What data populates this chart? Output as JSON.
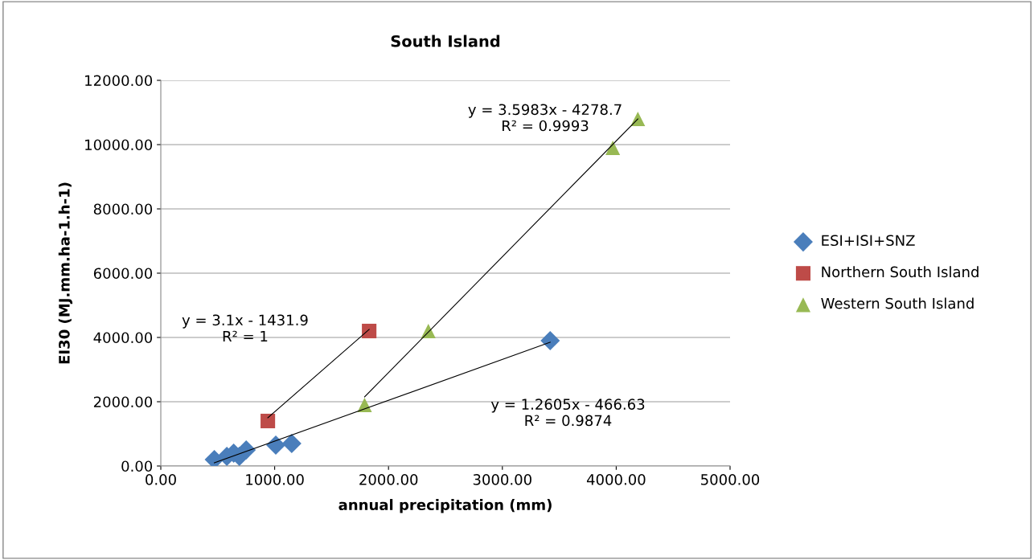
{
  "chart_data": {
    "type": "scatter",
    "title": "South Island",
    "xlabel": "annual precipitation (mm)",
    "ylabel": "EI30 (MJ.mm.ha-1.h-1)",
    "xlim": [
      0,
      5000
    ],
    "xticks": [
      {
        "value": 0,
        "label": "0.00"
      },
      {
        "value": 1000,
        "label": "1000.00"
      },
      {
        "value": 2000,
        "label": "2000.00"
      },
      {
        "value": 3000,
        "label": "3000.00"
      },
      {
        "value": 4000,
        "label": "4000.00"
      },
      {
        "value": 5000,
        "label": "5000.00"
      }
    ],
    "ylim": [
      0,
      12000
    ],
    "yticks": [
      {
        "value": 0,
        "label": "0.00"
      },
      {
        "value": 2000,
        "label": "2000.00"
      },
      {
        "value": 4000,
        "label": "4000.00"
      },
      {
        "value": 6000,
        "label": "6000.00"
      },
      {
        "value": 8000,
        "label": "8000.00"
      },
      {
        "value": 10000,
        "label": "10000.00"
      },
      {
        "value": 12000,
        "label": "12000.00"
      }
    ],
    "grid": "y",
    "legend": "right",
    "series": [
      {
        "name": "ESI+ISI+SNZ",
        "color": "#4a7ebb",
        "marker": "diamond",
        "x": [
          470,
          580,
          640,
          690,
          750,
          1010,
          1150,
          3420
        ],
        "values": [
          200,
          300,
          400,
          300,
          500,
          650,
          700,
          3900
        ]
      },
      {
        "name": "Northern South Island",
        "color": "#be4b48",
        "marker": "square",
        "x": [
          940,
          1830
        ],
        "values": [
          1400,
          4200
        ]
      },
      {
        "name": "Western South Island",
        "color": "#98b954",
        "marker": "triangle",
        "x": [
          1790,
          2350,
          3970,
          4190
        ],
        "values": [
          1900,
          4200,
          9900,
          10800
        ]
      },
      {
        "type": "line",
        "color": "#000000",
        "marker": "none",
        "x": [
          470,
          3420
        ],
        "values": [
          100,
          3850
        ]
      },
      {
        "type": "line",
        "color": "#000000",
        "marker": "none",
        "x": [
          940,
          1830
        ],
        "values": [
          1500,
          4250
        ]
      },
      {
        "type": "line",
        "color": "#000000",
        "marker": "none",
        "x": [
          1790,
          4190
        ],
        "values": [
          2150,
          10800
        ]
      }
    ],
    "annotations": [
      "y = 1.2605x - 466.63\nR² = 0.9874",
      "y = 3.1x - 1431.9\nR² = 1",
      "y = 3.5983x - 4278.7\nR² = 0.9993"
    ]
  }
}
